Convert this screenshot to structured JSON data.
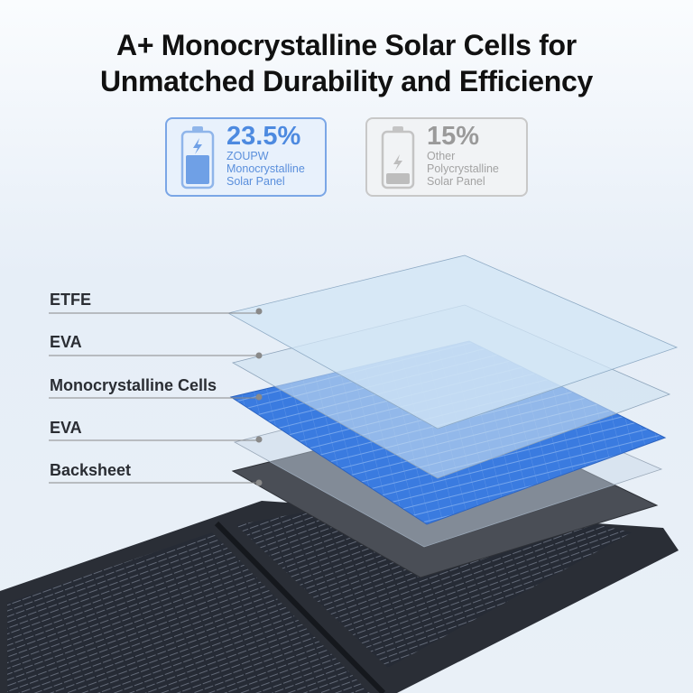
{
  "title_line1": "A+ Monocrystalline Solar Cells for",
  "title_line2": "Unmatched Durability and Efficiency",
  "comparison": [
    {
      "value": "23.5%",
      "brand": "ZOUPW",
      "type": "Monocrystalline",
      "product": "Solar Panel",
      "icon": "battery-full-icon",
      "color": "#4d8ae0"
    },
    {
      "value": "15%",
      "brand": "Other",
      "type": "Polycrystalline",
      "product": "Solar Panel",
      "icon": "battery-low-icon",
      "color": "#9a9a9a"
    }
  ],
  "layers": [
    "ETFE",
    "EVA",
    "Monocrystalline Cells",
    "EVA",
    "Backsheet"
  ]
}
